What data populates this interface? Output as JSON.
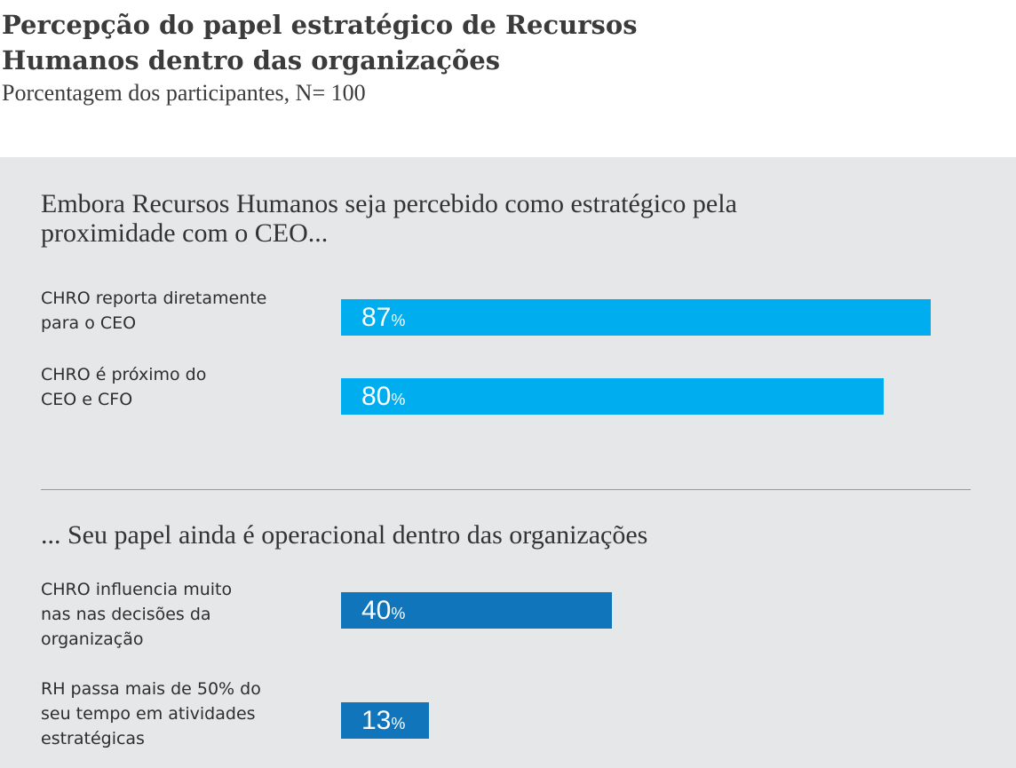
{
  "colors": {
    "light_blue": "#00aeef",
    "dark_blue": "#1175bb",
    "panel": "#e6e7e8"
  },
  "chart_data": {
    "type": "bar",
    "orientation": "horizontal",
    "title": "Percepção do papel estratégico de Recursos Humanos dentro das organizações",
    "subtitle": "Porcentagem dos participantes, N= 100",
    "unit": "%",
    "xlim": [
      0,
      100
    ],
    "grid": false,
    "groups": [
      {
        "heading": "Embora Recursos Humanos seja percebido como estratégico pela proximidade com o CEO...",
        "color": "#00aeef",
        "categories": [
          "CHRO reporta diretamente para o CEO",
          "CHRO é próximo do CEO e CFO"
        ],
        "values": [
          87,
          80
        ]
      },
      {
        "heading": "... Seu papel ainda é operacional dentro das organizações",
        "color": "#1175bb",
        "categories": [
          "CHRO influencia muito nas nas decisões da organização",
          "RH passa mais de 50% do seu tempo em atividades estratégicas"
        ],
        "values": [
          40,
          13
        ]
      }
    ]
  }
}
